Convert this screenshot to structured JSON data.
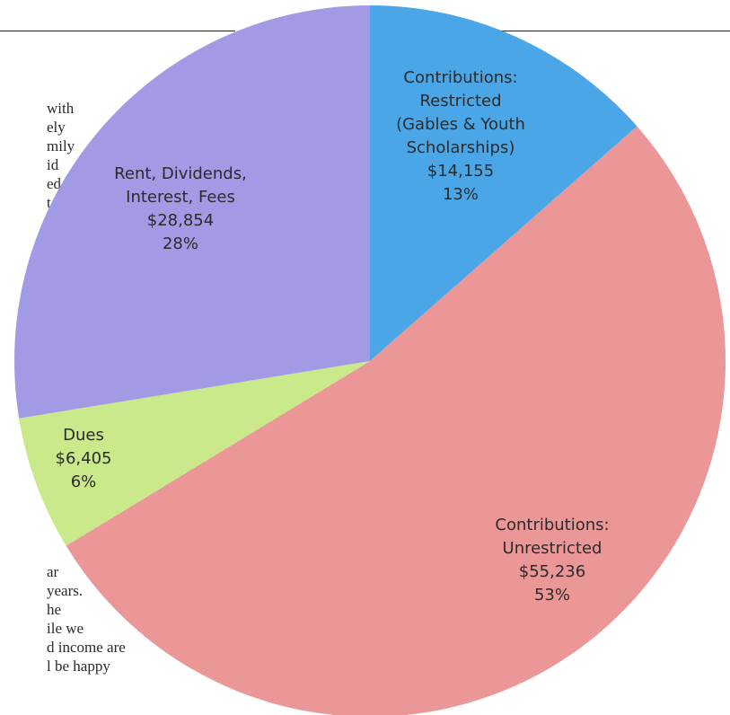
{
  "page_fragments": {
    "left_top": [
      "with",
      "ely",
      "mily",
      "id",
      "ed",
      "t",
      "."
    ],
    "left_bottom": [
      "ar",
      "years.",
      "he",
      "ile we",
      "d income are",
      "l be happy"
    ]
  },
  "chart_data": {
    "type": "pie",
    "title": "",
    "start_angle_deg": 0,
    "direction": "clockwise",
    "slices": [
      {
        "name": "Contributions: Restricted (Gables & Youth Scholarships)",
        "label_lines": [
          "Contributions:",
          "Restricted",
          "(Gables & Youth",
          "Scholarships)",
          "$14,155",
          "13%"
        ],
        "value": 14155,
        "percent": 13,
        "color": "#4aa6e6"
      },
      {
        "name": "Contributions: Unrestricted",
        "label_lines": [
          "Contributions:",
          "Unrestricted",
          "$55,236",
          "53%"
        ],
        "value": 55236,
        "percent": 53,
        "color": "#ec9797"
      },
      {
        "name": "Dues",
        "label_lines": [
          "Dues",
          "$6,405",
          "6%"
        ],
        "value": 6405,
        "percent": 6,
        "color": "#c9e98a"
      },
      {
        "name": "Rent, Dividends, Interest, Fees",
        "label_lines": [
          "Rent, Dividends,",
          "Interest, Fees",
          "$28,854",
          "28%"
        ],
        "value": 28854,
        "percent": 28,
        "color": "#a39ae6"
      }
    ]
  }
}
